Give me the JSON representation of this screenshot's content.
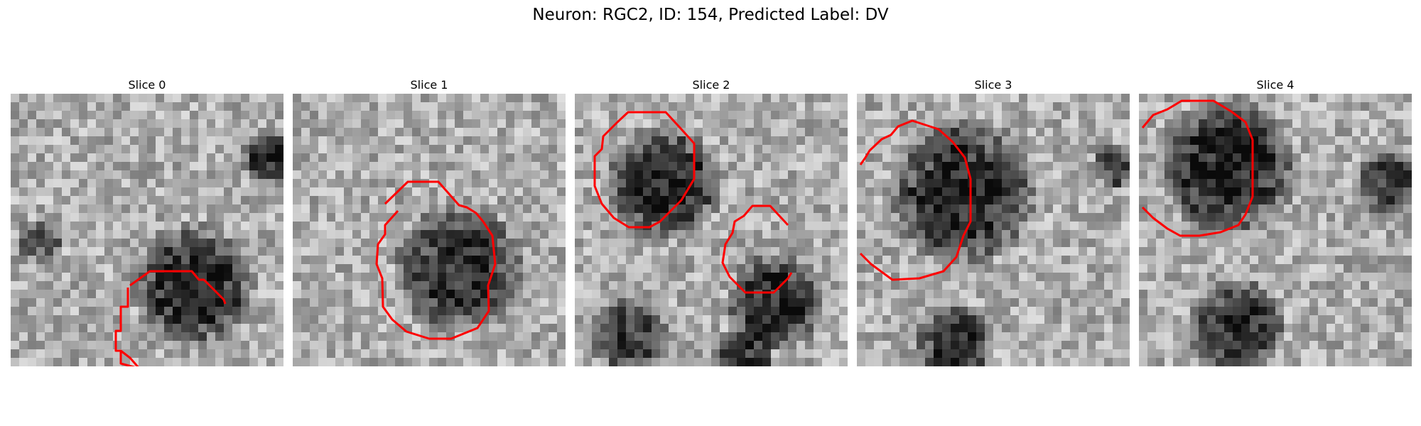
{
  "figure": {
    "title": "Neuron: RGC2, ID: 154, Predicted Label: DV",
    "contour_color": "#ff0000",
    "colormap": "gray"
  },
  "panels": [
    {
      "title": "Slice 0"
    },
    {
      "title": "Slice 1"
    },
    {
      "title": "Slice 2"
    },
    {
      "title": "Slice 3"
    },
    {
      "title": "Slice 4"
    }
  ]
}
